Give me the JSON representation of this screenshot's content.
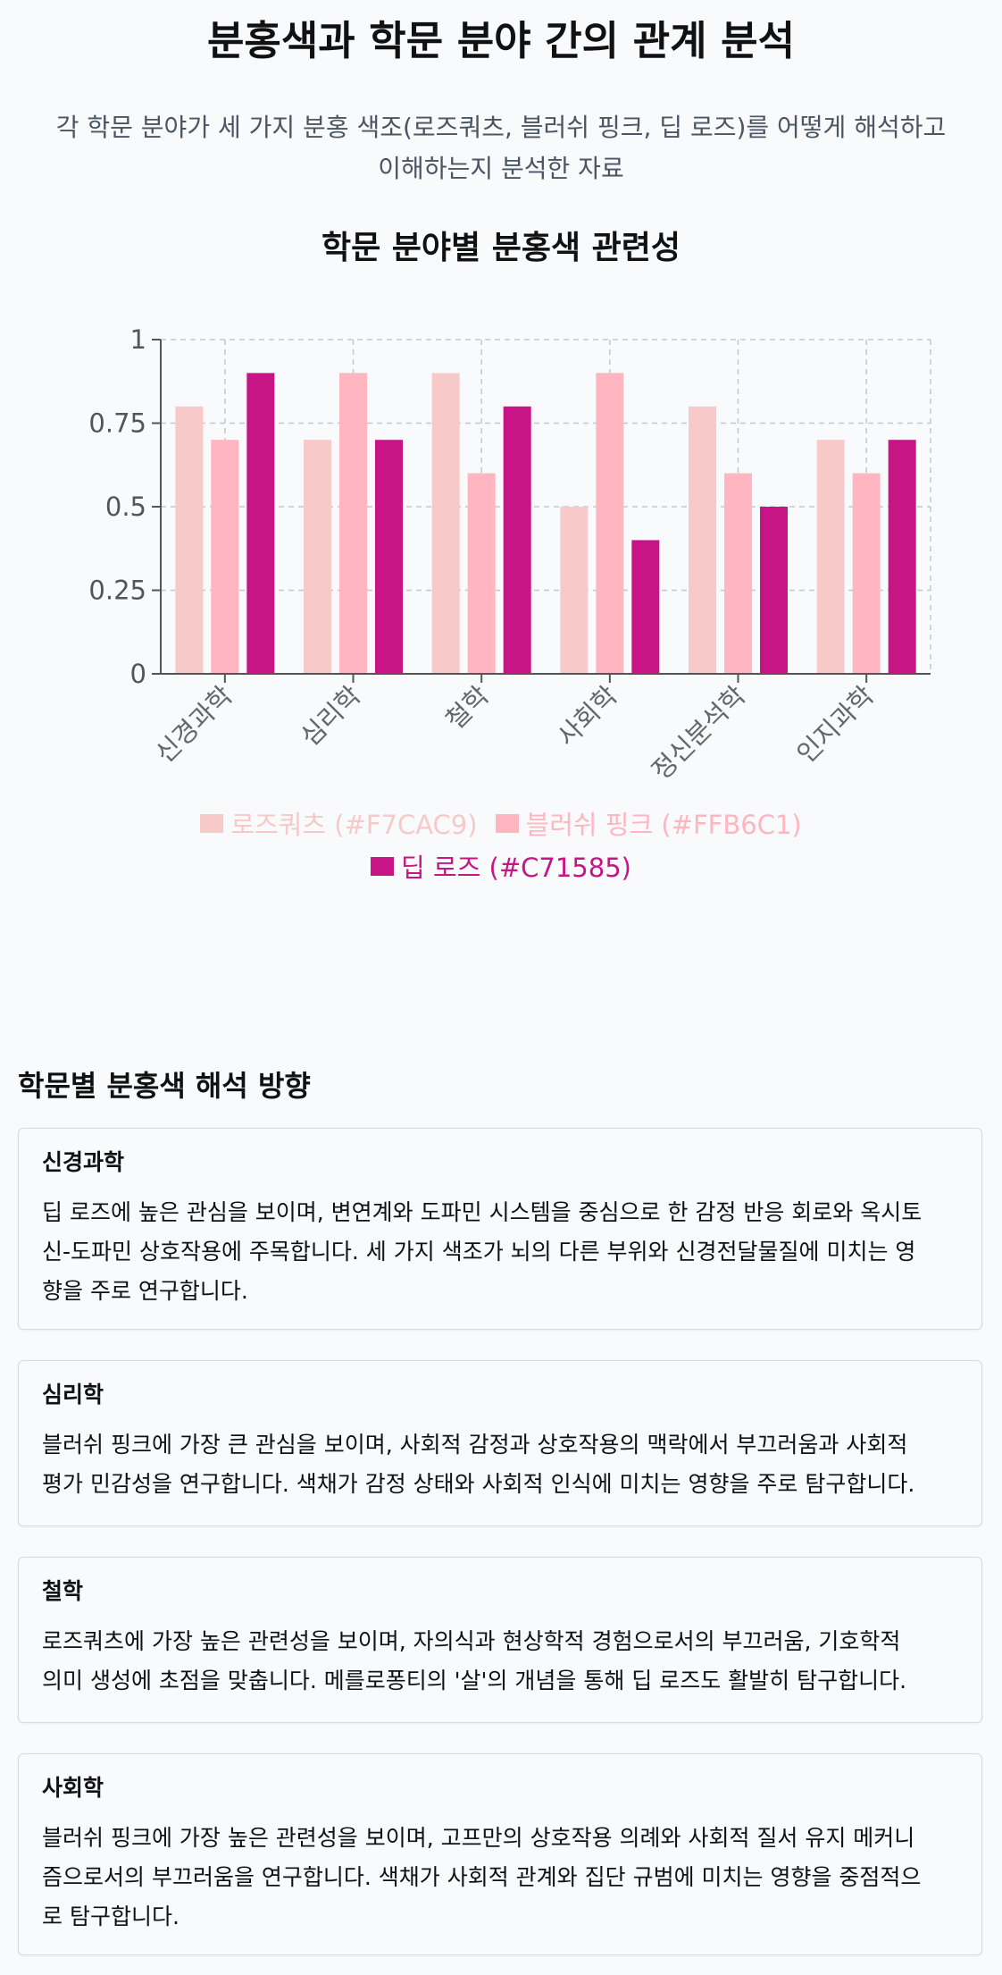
{
  "header": {
    "title": "분홍색과 학문 분야 간의 관계 분석",
    "subtitle_line1": "각 학문 분야가 세 가지 분홍 색조(로즈쿼츠, 블러쉬 핑크, 딥 로즈)를 어떻게 해석하고",
    "subtitle_line2": "이해하는지 분석한 자료"
  },
  "chart_data": {
    "type": "bar",
    "title": "학문 분야별 분홍색 관련성",
    "categories": [
      "신경과학",
      "심리학",
      "철학",
      "사회학",
      "정신분석학",
      "인지과학"
    ],
    "series": [
      {
        "name": "로즈쿼츠 (#F7CAC9)",
        "color": "#F7CAC9",
        "values": [
          0.8,
          0.7,
          0.9,
          0.5,
          0.8,
          0.7
        ]
      },
      {
        "name": "블러쉬 핑크 (#FFB6C1)",
        "color": "#FFB6C1",
        "values": [
          0.7,
          0.9,
          0.6,
          0.9,
          0.6,
          0.6
        ]
      },
      {
        "name": "딥 로즈 (#C71585)",
        "color": "#C71585",
        "values": [
          0.9,
          0.7,
          0.8,
          0.4,
          0.5,
          0.7
        ]
      }
    ],
    "yticks": [
      "0",
      "0.25",
      "0.5",
      "0.75",
      "1"
    ],
    "ylim": [
      0,
      1
    ],
    "xlabel": "",
    "ylabel": "",
    "grid": true,
    "legend_position": "bottom"
  },
  "section": {
    "title": "학문별 분홍색 해석 방향",
    "cards": [
      {
        "title": "신경과학",
        "lines": [
          "딥 로즈에 높은 관심을 보이며, 변연계와 도파민 시스템을 중심으로 한 감정 반응 회로와 옥시토",
          "신-도파민 상호작용에 주목합니다. 세 가지 색조가 뇌의 다른 부위와 신경전달물질에 미치는 영",
          "향을 주로 연구합니다."
        ]
      },
      {
        "title": "심리학",
        "lines": [
          "블러쉬 핑크에 가장 큰 관심을 보이며, 사회적 감정과 상호작용의 맥락에서 부끄러움과 사회적",
          "평가 민감성을 연구합니다. 색채가 감정 상태와 사회적 인식에 미치는 영향을 주로 탐구합니다."
        ]
      },
      {
        "title": "철학",
        "lines": [
          "로즈쿼츠에 가장 높은 관련성을 보이며, 자의식과 현상학적 경험으로서의 부끄러움, 기호학적",
          "의미 생성에 초점을 맞춥니다. 메를로퐁티의 '살'의 개념을 통해 딥 로즈도 활발히 탐구합니다."
        ]
      },
      {
        "title": "사회학",
        "lines": [
          "블러쉬 핑크에 가장 높은 관련성을 보이며, 고프만의 상호작용 의례와 사회적 질서 유지 메커니",
          "즘으로서의 부끄러움을 연구합니다. 색채가 사회적 관계와 집단 규범에 미치는 영향을 중점적으",
          "로 탐구합니다."
        ]
      }
    ]
  }
}
